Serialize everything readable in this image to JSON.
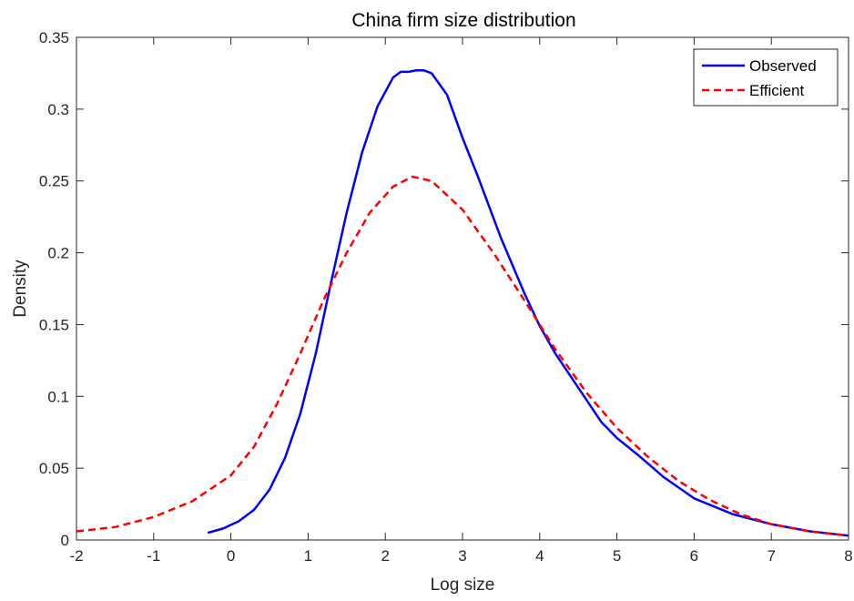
{
  "chart_data": {
    "type": "line",
    "title": "China firm size distribution",
    "xlabel": "Log size",
    "ylabel": "Density",
    "xlim": [
      -2,
      8
    ],
    "ylim": [
      0,
      0.35
    ],
    "x_ticks": [
      "-2",
      "-1",
      "0",
      "1",
      "2",
      "3",
      "4",
      "5",
      "6",
      "7",
      "8"
    ],
    "y_ticks": [
      "0",
      "0.05",
      "0.1",
      "0.15",
      "0.2",
      "0.25",
      "0.3",
      "0.35"
    ],
    "grid": false,
    "legend_position": "top-right",
    "series": [
      {
        "name": "Observed",
        "color": "#0000ff",
        "style": "solid",
        "x": [
          -0.3,
          -0.1,
          0.1,
          0.3,
          0.5,
          0.7,
          0.9,
          1.1,
          1.3,
          1.5,
          1.7,
          1.9,
          2.1,
          2.2,
          2.3,
          2.4,
          2.5,
          2.6,
          2.8,
          3.0,
          3.2,
          3.5,
          3.8,
          4.0,
          4.2,
          4.5,
          4.8,
          5.0,
          5.3,
          5.6,
          6.0,
          6.5,
          7.0,
          7.5,
          8.0
        ],
        "y": [
          0.005,
          0.008,
          0.013,
          0.021,
          0.035,
          0.057,
          0.088,
          0.13,
          0.18,
          0.228,
          0.27,
          0.302,
          0.322,
          0.326,
          0.326,
          0.327,
          0.327,
          0.325,
          0.31,
          0.28,
          0.253,
          0.21,
          0.172,
          0.149,
          0.13,
          0.106,
          0.082,
          0.071,
          0.058,
          0.044,
          0.029,
          0.018,
          0.011,
          0.006,
          0.003
        ]
      },
      {
        "name": "Efficient",
        "color": "#ff0000",
        "style": "dashed",
        "x": [
          -2.0,
          -1.5,
          -1.0,
          -0.5,
          0.0,
          0.3,
          0.6,
          0.9,
          1.2,
          1.5,
          1.8,
          2.1,
          2.35,
          2.6,
          3.0,
          3.4,
          3.8,
          4.2,
          4.6,
          5.0,
          5.4,
          5.8,
          6.2,
          6.6,
          7.0,
          7.5,
          8.0
        ],
        "y": [
          0.006,
          0.009,
          0.016,
          0.027,
          0.045,
          0.065,
          0.095,
          0.13,
          0.167,
          0.2,
          0.228,
          0.246,
          0.253,
          0.25,
          0.23,
          0.2,
          0.167,
          0.133,
          0.103,
          0.078,
          0.058,
          0.041,
          0.028,
          0.018,
          0.011,
          0.006,
          0.003
        ]
      }
    ]
  }
}
